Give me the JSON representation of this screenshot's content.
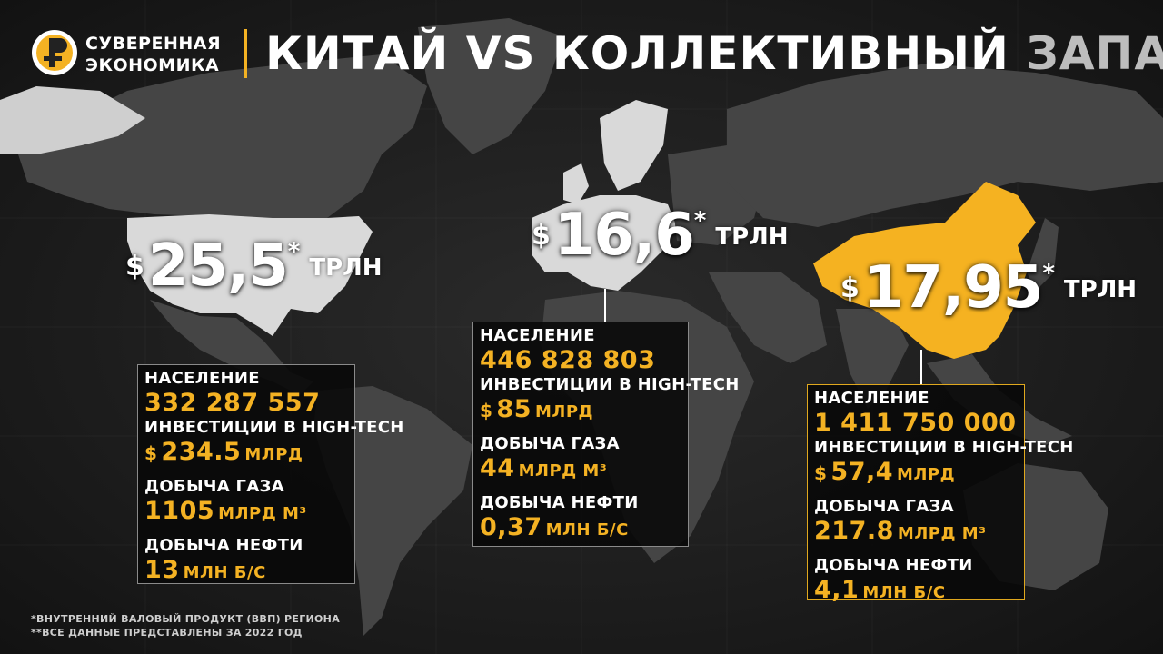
{
  "brand": {
    "line1": "СУВЕРЕННАЯ",
    "line2": "ЭКОНОМИКА"
  },
  "title": {
    "part1": "КИТАЙ VS КОЛЛЕКТИВНЫЙ",
    "part2": "ЗАПАД"
  },
  "colors": {
    "accent": "#f4b223",
    "china": "#f5b221",
    "west": "#d9d9d9",
    "land": "#474747"
  },
  "regions": {
    "usa": {
      "gdp": {
        "currency": "$",
        "value": "25,5",
        "asterisk": "*",
        "unit": "ТРЛН"
      },
      "stats": {
        "population_label": "НАСЕЛЕНИЕ",
        "population_value": "332 287 557",
        "hightech_label": "ИНВЕСТИЦИИ В HIGH-TECH",
        "hightech_currency": "$",
        "hightech_value": "234.5",
        "hightech_unit": "МЛРД",
        "gas_label": "ДОБЫЧА ГАЗА",
        "gas_value": "1105",
        "gas_unit": "МЛРД М³",
        "oil_label": "ДОБЫЧА НЕФТИ",
        "oil_value": "13",
        "oil_unit": "МЛН Б/С"
      }
    },
    "eu": {
      "gdp": {
        "currency": "$",
        "value": "16,6",
        "asterisk": "*",
        "unit": "ТРЛН"
      },
      "stats": {
        "population_label": "НАСЕЛЕНИЕ",
        "population_value": "446 828 803",
        "hightech_label": "ИНВЕСТИЦИИ В HIGH-TECH",
        "hightech_currency": "$",
        "hightech_value": "85",
        "hightech_unit": "МЛРД",
        "gas_label": "ДОБЫЧА ГАЗА",
        "gas_value": "44",
        "gas_unit": "МЛРД М³",
        "oil_label": "ДОБЫЧА НЕФТИ",
        "oil_value": "0,37",
        "oil_unit": "МЛН Б/С"
      }
    },
    "china": {
      "gdp": {
        "currency": "$",
        "value": "17,95",
        "asterisk": "*",
        "unit": "ТРЛН"
      },
      "stats": {
        "population_label": "НАСЕЛЕНИЕ",
        "population_value": "1 411 750 000",
        "hightech_label": "ИНВЕСТИЦИИ В HIGH-TECH",
        "hightech_currency": "$",
        "hightech_value": "57,4",
        "hightech_unit": "МЛРД",
        "gas_label": "ДОБЫЧА ГАЗА",
        "gas_value": "217.8",
        "gas_unit": "МЛРД М³",
        "oil_label": "ДОБЫЧА НЕФТИ",
        "oil_value": "4,1",
        "oil_unit": "МЛН Б/С"
      }
    }
  },
  "footnotes": {
    "line1": "*ВНУТРЕННИЙ ВАЛОВЫЙ ПРОДУКТ (ВВП) РЕГИОНА",
    "line2": "**ВСЕ ДАННЫЕ ПРЕДСТАВЛЕНЫ ЗА 2022 ГОД"
  }
}
